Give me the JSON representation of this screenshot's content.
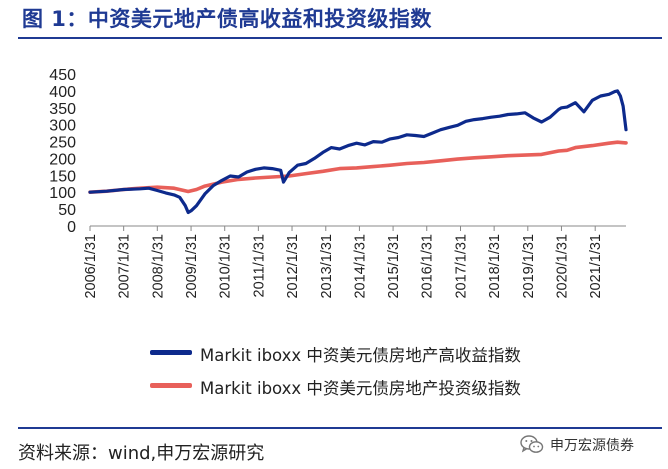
{
  "figure": {
    "title": "图 1：中资美元地产债高收益和投资级指数",
    "source": "资料来源：wind,申万宏源研究",
    "watermark": "申万宏源债券",
    "watermark_icon": "wechat-icon"
  },
  "chart_data": {
    "type": "line",
    "ylim": [
      0,
      450
    ],
    "yticks": [
      0,
      50,
      100,
      150,
      200,
      250,
      300,
      350,
      400,
      450
    ],
    "xlim": [
      "2006/1/31",
      "2021/12/31"
    ],
    "xtick_labels": [
      "2006/1/31",
      "2007/1/31",
      "2008/1/31",
      "2009/1/31",
      "2010/1/31",
      "2011/1/31",
      "2012/1/31",
      "2013/1/31",
      "2014/1/31",
      "2015/1/31",
      "2016/1/31",
      "2017/1/31",
      "2018/1/31",
      "2019/1/31",
      "2020/1/31",
      "2021/1/31"
    ],
    "legend_position": "bottom",
    "grid": false,
    "series": [
      {
        "name": "Markit iboxx 中资美元债房地产高收益指数",
        "color": "#0d2a8c",
        "x": [
          "2006/1/31",
          "2006/7/31",
          "2007/1/31",
          "2007/7/31",
          "2007/10/31",
          "2008/1/31",
          "2008/4/30",
          "2008/7/31",
          "2008/9/30",
          "2008/11/30",
          "2008/12/31",
          "2009/1/31",
          "2009/3/31",
          "2009/6/30",
          "2009/9/30",
          "2009/12/31",
          "2010/3/31",
          "2010/6/30",
          "2010/9/30",
          "2010/12/31",
          "2011/3/31",
          "2011/6/30",
          "2011/9/30",
          "2011/10/31",
          "2011/12/31",
          "2012/3/31",
          "2012/6/30",
          "2012/9/30",
          "2012/12/31",
          "2013/3/31",
          "2013/6/30",
          "2013/9/30",
          "2013/12/31",
          "2014/3/31",
          "2014/6/30",
          "2014/9/30",
          "2014/12/31",
          "2015/3/31",
          "2015/6/30",
          "2015/9/30",
          "2015/12/31",
          "2016/3/31",
          "2016/6/30",
          "2016/9/30",
          "2016/12/31",
          "2017/3/31",
          "2017/6/30",
          "2017/9/30",
          "2017/12/31",
          "2018/3/31",
          "2018/6/30",
          "2018/9/30",
          "2018/12/31",
          "2019/3/31",
          "2019/6/30",
          "2019/9/30",
          "2019/12/31",
          "2020/1/31",
          "2020/3/31",
          "2020/6/30",
          "2020/9/30",
          "2020/12/31",
          "2021/3/31",
          "2021/6/30",
          "2021/8/31",
          "2021/9/30",
          "2021/10/31",
          "2021/11/30",
          "2021/12/31"
        ],
        "values": [
          100,
          103,
          108,
          110,
          112,
          105,
          98,
          92,
          85,
          60,
          40,
          45,
          60,
          95,
          120,
          135,
          148,
          145,
          160,
          168,
          172,
          170,
          165,
          130,
          158,
          180,
          185,
          200,
          218,
          232,
          228,
          238,
          245,
          240,
          250,
          248,
          258,
          262,
          270,
          268,
          265,
          275,
          285,
          292,
          298,
          310,
          315,
          318,
          322,
          325,
          330,
          332,
          335,
          320,
          308,
          322,
          345,
          350,
          352,
          365,
          338,
          372,
          385,
          390,
          398,
          400,
          385,
          355,
          285
        ]
      },
      {
        "name": "Markit iboxx 中资美元债房地产投资级指数",
        "color": "#e8605a",
        "x": [
          "2006/1/31",
          "2006/7/31",
          "2007/1/31",
          "2007/7/31",
          "2008/1/31",
          "2008/7/31",
          "2008/12/31",
          "2009/3/31",
          "2009/6/30",
          "2009/12/31",
          "2010/6/30",
          "2010/12/31",
          "2011/6/30",
          "2011/12/31",
          "2012/6/30",
          "2012/12/31",
          "2013/6/30",
          "2013/12/31",
          "2014/6/30",
          "2014/12/31",
          "2015/6/30",
          "2015/12/31",
          "2016/6/30",
          "2016/12/31",
          "2017/6/30",
          "2017/12/31",
          "2018/6/30",
          "2018/12/31",
          "2019/6/30",
          "2019/12/31",
          "2020/3/31",
          "2020/6/30",
          "2020/12/31",
          "2021/6/30",
          "2021/9/30",
          "2021/12/31"
        ],
        "values": [
          100,
          103,
          108,
          112,
          115,
          112,
          102,
          108,
          118,
          130,
          138,
          142,
          145,
          148,
          155,
          162,
          170,
          172,
          176,
          180,
          185,
          188,
          193,
          198,
          202,
          205,
          208,
          210,
          212,
          222,
          224,
          232,
          238,
          245,
          248,
          246
        ]
      }
    ]
  }
}
